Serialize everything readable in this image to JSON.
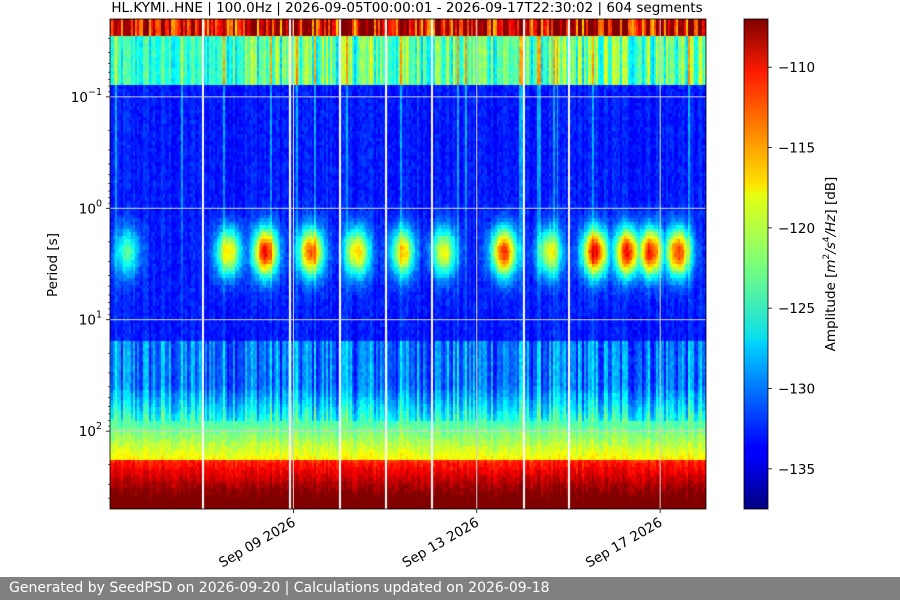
{
  "chart_data": {
    "type": "heatmap",
    "title": "HL.KYMI..HNE | 100.0Hz | 2026-09-05T00:00:01 - 2026-09-17T22:30:02 | 604 segments",
    "ylabel": "Period [s]",
    "xlabel": "",
    "y_scale": "log",
    "y_axis_inverted": true,
    "ylim": [
      0.02,
      500
    ],
    "y_ticks": [
      {
        "exp": "−1"
      },
      {
        "exp": "0"
      },
      {
        "exp": "1"
      },
      {
        "exp": "2"
      }
    ],
    "x_ticks": [
      "Sep 09 2026",
      "Sep 13 2026",
      "Sep 17 2026"
    ],
    "grid": true,
    "colormap": "jet",
    "colorbar": {
      "label_prefix": "Amplitude [",
      "label_unit_base1": "m",
      "label_unit_exp1": "2",
      "label_unit_mid": "/s",
      "label_unit_exp2": "4",
      "label_unit_tail": "/Hz",
      "label_suffix": "] [dB]",
      "range": [
        -137.5,
        -107
      ],
      "ticks": [
        "−110",
        "−115",
        "−120",
        "−125",
        "−130",
        "−135"
      ]
    },
    "time_range_days": [
      0,
      13
    ],
    "microseism_period_s": 2.5,
    "microseism_peaks": [
      {
        "day": 0.4,
        "level": 0.35
      },
      {
        "day": 2.6,
        "level": 0.6
      },
      {
        "day": 3.4,
        "level": 0.85
      },
      {
        "day": 4.4,
        "level": 0.75
      },
      {
        "day": 5.4,
        "level": 0.62
      },
      {
        "day": 6.4,
        "level": 0.6
      },
      {
        "day": 7.3,
        "level": 0.55
      },
      {
        "day": 8.6,
        "level": 0.8
      },
      {
        "day": 9.6,
        "level": 0.55
      },
      {
        "day": 10.6,
        "level": 0.85
      },
      {
        "day": 11.3,
        "level": 0.85
      },
      {
        "day": 11.8,
        "level": 0.85
      },
      {
        "day": 12.4,
        "level": 0.8
      }
    ],
    "gaps_days": [
      2.0,
      3.9,
      5.0,
      6.0,
      7.0,
      9.0,
      10.0
    ]
  },
  "footer": {
    "text": "Generated by SeedPSD on 2026-09-20 | Calculations updated on 2026-09-18"
  },
  "colors": {
    "footer_bg": "#808080",
    "grid": "#d0d0d0"
  }
}
